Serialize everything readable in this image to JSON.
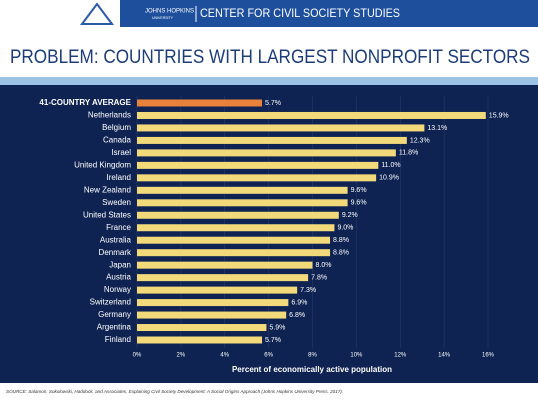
{
  "header": {
    "university": "JOHNS HOPKINS",
    "university_sub": "UNIVERSITY",
    "center": "CENTER FOR CIVIL SOCIETY STUDIES"
  },
  "chart_data": {
    "type": "hbar",
    "title": "PROBLEM: COUNTRIES WITH LARGEST NONPROFIT SECTORS",
    "x_label": "Percent of economically active population",
    "categories": [
      "41-COUNTRY AVERAGE",
      "Netherlands",
      "Belgium",
      "Canada",
      "Israel",
      "United Kingdom",
      "Ireland",
      "New Zealand",
      "Sweden",
      "United States",
      "France",
      "Australia",
      "Denmark",
      "Japan",
      "Austria",
      "Norway",
      "Switzerland",
      "Germany",
      "Argentina",
      "Finland"
    ],
    "values": [
      5.7,
      15.9,
      13.1,
      12.3,
      11.8,
      11.0,
      10.9,
      9.6,
      9.6,
      9.2,
      9.0,
      8.8,
      8.8,
      8.0,
      7.8,
      7.3,
      6.9,
      6.8,
      5.9,
      5.7
    ],
    "value_labels": [
      "5.7%",
      "15.9%",
      "13.1%",
      "12.3%",
      "11.8%",
      "11.0%",
      "10.9%",
      "9.6%",
      "9.6%",
      "9.2%",
      "9.0%",
      "8.8%",
      "8.8%",
      "8.0%",
      "7.8%",
      "7.3%",
      "6.9%",
      "6.8%",
      "5.9%",
      "5.7%"
    ],
    "colors": [
      "#e8823a",
      "#f2d97a",
      "#f2d97a",
      "#f2d97a",
      "#f2d97a",
      "#f2d97a",
      "#f2d97a",
      "#f2d97a",
      "#f2d97a",
      "#f2d97a",
      "#f2d97a",
      "#f2d97a",
      "#f2d97a",
      "#f2d97a",
      "#f2d97a",
      "#f2d97a",
      "#f2d97a",
      "#f2d97a",
      "#f2d97a",
      "#f2d97a"
    ],
    "xlim": [
      0,
      16
    ],
    "xticks": [
      {
        "value": 0,
        "label": "0%"
      },
      {
        "value": 2,
        "label": "2%"
      },
      {
        "value": 4,
        "label": "4%"
      },
      {
        "value": 6,
        "label": "6%"
      },
      {
        "value": 8,
        "label": "8%"
      },
      {
        "value": 10,
        "label": "10%"
      },
      {
        "value": 12,
        "label": "12%"
      },
      {
        "value": 14,
        "label": "14%"
      },
      {
        "value": 16,
        "label": "16%"
      }
    ],
    "grid": true
  },
  "source": "SOURCE: Salamon, Sokolowski, Haddock, and Associates, Explaining Civil Society Development: A Social Origins Approach (Johns Hopkins University Press, 2017)."
}
